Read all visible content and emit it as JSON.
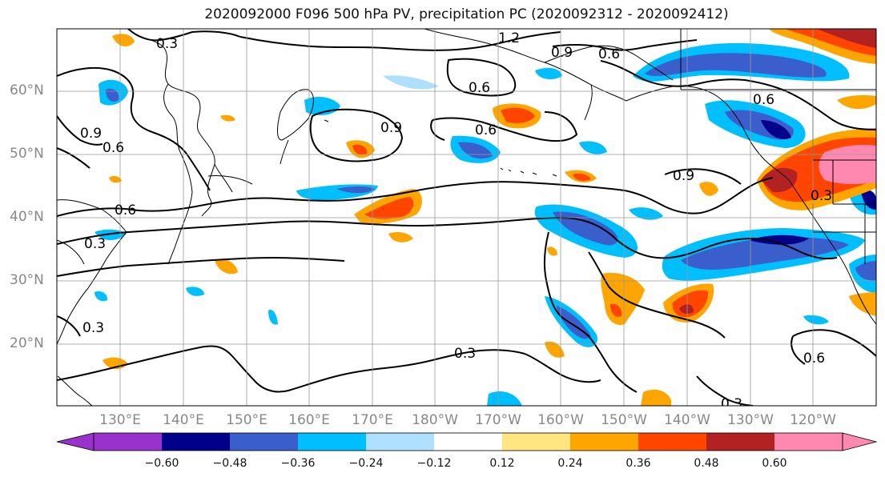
{
  "title": "2020092000 F096 500 hPa PV, precipitation PC (2020092312 - 2020092412)",
  "latitude_labels": [
    "60°N",
    "50°N",
    "40°N",
    "30°N",
    "20°N"
  ],
  "longitude_labels": [
    "130°E",
    "140°E",
    "150°E",
    "160°E",
    "170°E",
    "180°W",
    "170°W",
    "160°W",
    "150°W",
    "140°W",
    "130°W",
    "120°W"
  ],
  "contour_labels": [
    "0.3",
    "1.2",
    "0.9",
    "0.6",
    "0.6",
    "0.6",
    "0.9",
    "0.6",
    "0.9",
    "0.6",
    "0.9",
    "0.6",
    "0.3",
    "0.3",
    "0.3",
    "0.6",
    "0.3",
    "0.3"
  ],
  "colorbar": {
    "ticks": [
      "−0.60",
      "−0.48",
      "−0.36",
      "−0.24",
      "−0.12",
      "0.12",
      "0.24",
      "0.36",
      "0.48",
      "0.60"
    ],
    "colors": [
      "#9932cc",
      "#00008b",
      "#3a5fcd",
      "#00bfff",
      "#b0e0ff",
      "#ffffff",
      "#ffe680",
      "#ffa500",
      "#ff4500",
      "#b22222",
      "#ff88b0"
    ]
  }
}
